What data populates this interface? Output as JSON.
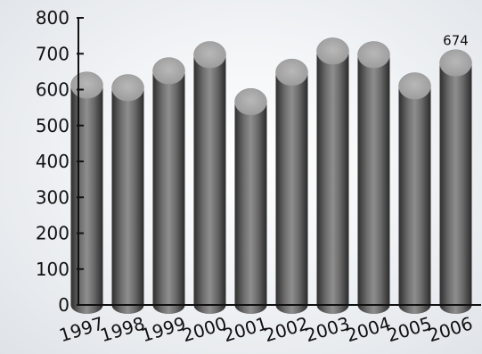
{
  "chart_data": {
    "type": "bar",
    "style": "3d-cylinder",
    "categories": [
      "1997",
      "1998",
      "1999",
      "2000",
      "2001",
      "2002",
      "2003",
      "2004",
      "2005",
      "2006"
    ],
    "values": [
      612,
      605,
      652,
      697,
      566,
      648,
      707,
      697,
      610,
      674
    ],
    "ylim": [
      0,
      800
    ],
    "yticks": [
      0,
      100,
      200,
      300,
      400,
      500,
      600,
      700,
      800
    ],
    "ytick_labels": [
      "0",
      "100",
      "200",
      "300",
      "400",
      "500",
      "600",
      "700",
      "800"
    ],
    "data_labels": [
      {
        "category": "2006",
        "text": "674"
      }
    ],
    "title": "",
    "xlabel": "",
    "ylabel": "",
    "grid": false,
    "legend": "none",
    "colors": {
      "cylinder_dark": "#3a3a3a",
      "cylinder_light": "#8a8a8a",
      "cylinder_top": "#a8a8a8",
      "axis": "#111111",
      "background": "#e8ebef"
    }
  }
}
